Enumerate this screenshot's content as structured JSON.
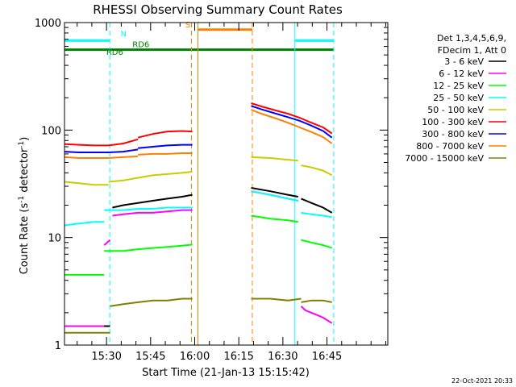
{
  "chart_data": {
    "type": "line",
    "title": "RHESSI Observing Summary Count Rates",
    "xlabel": "Start Time (21-Jan-13 15:15:42)",
    "ylabel_main": "Count Rate (s",
    "ylabel_sup1": "-1",
    "ylabel_mid": " detector",
    "ylabel_sup2": "-1",
    "ylabel_end": ")",
    "x_unit": "minutes since 15:15:42",
    "xlim": [
      0,
      110
    ],
    "ylim": [
      1,
      1000
    ],
    "y_scale": "log",
    "x_ticks": [
      {
        "x": 14.3,
        "label": "15:30"
      },
      {
        "x": 29.3,
        "label": "15:45"
      },
      {
        "x": 44.3,
        "label": "16:00"
      },
      {
        "x": 59.3,
        "label": "16:15"
      },
      {
        "x": 74.3,
        "label": "16:30"
      },
      {
        "x": 89.3,
        "label": "16:45"
      }
    ],
    "y_ticks": [
      {
        "v": 1,
        "label": "1"
      },
      {
        "v": 10,
        "label": "10"
      },
      {
        "v": 100,
        "label": "100"
      },
      {
        "v": 1000,
        "label": "1000"
      }
    ],
    "legend": {
      "header": [
        "Det 1,3,4,5,6,9,",
        "FDecim 1, Att 0"
      ],
      "position": "right"
    },
    "series": [
      {
        "name": "3 - 6 keV",
        "color": "#000000",
        "segments": [
          {
            "x": [
              0,
              15.5
            ],
            "y": [
              1.5,
              1.5
            ]
          },
          {
            "x": [
              16.3,
              20,
              25,
              30,
              35,
              40,
              43.5
            ],
            "y": [
              19,
              20,
              21,
              22,
              23,
              24,
              25
            ]
          },
          {
            "x": [
              63.5,
              70,
              76,
              79.5
            ],
            "y": [
              29,
              27,
              25,
              24
            ]
          },
          {
            "x": [
              80.5,
              84,
              88,
              91
            ],
            "y": [
              23,
              21,
              19,
              17
            ]
          }
        ]
      },
      {
        "name": "6 - 12 keV",
        "color": "#ff00ff",
        "segments": [
          {
            "x": [
              0,
              13.5
            ],
            "y": [
              1.5,
              1.5
            ]
          },
          {
            "x": [
              13.5,
              15.5
            ],
            "y": [
              8.5,
              9.5
            ]
          },
          {
            "x": [
              16.3,
              20,
              25,
              30,
              35,
              40,
              43.5
            ],
            "y": [
              16,
              16.5,
              17,
              17,
              17.5,
              18,
              18
            ]
          },
          {
            "x": [
              63.5,
              70,
              76,
              79.5
            ],
            "y": [
              27,
              25,
              23,
              22
            ]
          },
          {
            "x": [
              80.5,
              82,
              84,
              86,
              88,
              91
            ],
            "y": [
              2.3,
              2.1,
              2.0,
              1.9,
              1.8,
              1.6
            ]
          }
        ]
      },
      {
        "name": "12 - 25 keV",
        "color": "#00ff00",
        "segments": [
          {
            "x": [
              0,
              13.5
            ],
            "y": [
              4.5,
              4.5
            ]
          },
          {
            "x": [
              13.5,
              20,
              25,
              30,
              35,
              40,
              43.5
            ],
            "y": [
              7.5,
              7.5,
              7.8,
              8.0,
              8.2,
              8.4,
              8.6
            ]
          },
          {
            "x": [
              63.5,
              70,
              76,
              79.5
            ],
            "y": [
              16,
              15,
              14.5,
              14
            ]
          },
          {
            "x": [
              80.5,
              84,
              88,
              91
            ],
            "y": [
              9.5,
              9,
              8.5,
              8
            ]
          }
        ]
      },
      {
        "name": "25 - 50 keV",
        "color": "#00ffff",
        "segments": [
          {
            "x": [
              0,
              5,
              10,
              13.5
            ],
            "y": [
              13,
              13.5,
              14,
              14
            ]
          },
          {
            "x": [
              13.5,
              20,
              25,
              30,
              35,
              40,
              43.5
            ],
            "y": [
              18,
              18,
              18.5,
              18.5,
              19,
              19,
              19
            ]
          },
          {
            "x": [
              63.5,
              70,
              76,
              79.5
            ],
            "y": [
              27,
              25,
              23,
              22
            ]
          },
          {
            "x": [
              80.5,
              84,
              88,
              91
            ],
            "y": [
              17,
              16.5,
              16,
              15.5
            ]
          }
        ]
      },
      {
        "name": "50 - 100 keV",
        "color": "#cccc00",
        "segments": [
          {
            "x": [
              0,
              5,
              10,
              15
            ],
            "y": [
              33,
              32,
              31,
              31
            ]
          },
          {
            "x": [
              15,
              20,
              25,
              30,
              35,
              40,
              43.5
            ],
            "y": [
              33,
              34,
              36,
              38,
              39,
              40,
              41
            ]
          },
          {
            "x": [
              63.5,
              70,
              76,
              79.5
            ],
            "y": [
              56,
              55,
              53,
              52
            ]
          },
          {
            "x": [
              80.5,
              84,
              88,
              91
            ],
            "y": [
              47,
              45,
              42,
              38
            ]
          }
        ]
      },
      {
        "name": "100 - 300 keV",
        "color": "#ff0000",
        "segments": [
          {
            "x": [
              0,
              5,
              10,
              15,
              20,
              25
            ],
            "y": [
              74,
              73,
              72,
              72,
              75,
              82
            ]
          },
          {
            "x": [
              25,
              30,
              35,
              40,
              43.5
            ],
            "y": [
              85,
              92,
              97,
              98,
              97
            ]
          },
          {
            "x": [
              63.5,
              67,
              72,
              76,
              80,
              84,
              88,
              91
            ],
            "y": [
              178,
              166,
              152,
              142,
              130,
              117,
              106,
              93
            ]
          }
        ]
      },
      {
        "name": "300 - 800 keV",
        "color": "#0000ff",
        "segments": [
          {
            "x": [
              0,
              5,
              10,
              15,
              20,
              25
            ],
            "y": [
              63,
              62,
              62,
              62,
              63,
              66
            ]
          },
          {
            "x": [
              25,
              30,
              35,
              40,
              43.5
            ],
            "y": [
              68,
              70,
              72,
              73,
              73
            ]
          },
          {
            "x": [
              63.5,
              67,
              72,
              76,
              80,
              84,
              88,
              91
            ],
            "y": [
              168,
              156,
              142,
              132,
              122,
              110,
              98,
              85
            ]
          }
        ]
      },
      {
        "name": "800 - 7000 keV",
        "color": "#ff8000",
        "segments": [
          {
            "x": [
              0,
              5,
              10,
              15,
              20,
              25
            ],
            "y": [
              56,
              55,
              55,
              55,
              56,
              57
            ]
          },
          {
            "x": [
              25,
              30,
              35,
              40,
              43.5
            ],
            "y": [
              59,
              60,
              60,
              61,
              61
            ]
          },
          {
            "x": [
              63.5,
              67,
              72,
              76,
              80,
              84,
              88,
              91
            ],
            "y": [
              155,
              142,
              128,
              117,
              106,
              96,
              86,
              75
            ]
          }
        ]
      },
      {
        "name": "7000 - 15000 keV",
        "color": "#808000",
        "segments": [
          {
            "x": [
              0,
              15.5
            ],
            "y": [
              1.3,
              1.3
            ]
          },
          {
            "x": [
              15.5,
              20,
              25,
              30,
              35,
              40,
              43.5
            ],
            "y": [
              2.3,
              2.4,
              2.5,
              2.6,
              2.6,
              2.7,
              2.7
            ]
          },
          {
            "x": [
              63.5,
              70,
              76,
              80.5
            ],
            "y": [
              2.7,
              2.7,
              2.6,
              2.7
            ]
          },
          {
            "x": [
              80.5,
              84,
              88,
              91
            ],
            "y": [
              2.5,
              2.6,
              2.6,
              2.5
            ]
          }
        ]
      }
    ],
    "vlines": [
      {
        "x": 15.4,
        "color": "#00ffff",
        "dash": true
      },
      {
        "x": 78.4,
        "color": "#00ffff",
        "dash": false
      },
      {
        "x": 91.6,
        "color": "#00ffff",
        "dash": true
      },
      {
        "x": 43.2,
        "color": "#ff8000",
        "dash": true
      },
      {
        "x": 45.4,
        "color": "#ff8000",
        "dash": false
      },
      {
        "x": 63.9,
        "color": "#ff8000",
        "dash": true
      }
    ],
    "hlines": [
      {
        "x1": 0,
        "x2": 15.4,
        "y": 680,
        "color": "#00ffff"
      },
      {
        "x1": 78.4,
        "x2": 91.6,
        "y": 680,
        "color": "#00ffff"
      },
      {
        "x1": 45.4,
        "x2": 63.9,
        "y": 860,
        "color": "#ff8000"
      },
      {
        "x1": 0,
        "x2": 91.6,
        "y": 560,
        "color": "#008000"
      }
    ],
    "annotations": [
      {
        "text": "N",
        "x": 20.1,
        "y": 740,
        "color": "#00ffff"
      },
      {
        "text": "S",
        "x": 42.0,
        "y": 900,
        "color": "#ff8000"
      },
      {
        "text": "RD6",
        "x": 26.0,
        "y": 590,
        "color": "#008000"
      },
      {
        "text": "RD6",
        "x": 17.1,
        "y": 500,
        "color": "#008000"
      }
    ]
  },
  "timestamp": "22-Oct-2021 20:33"
}
